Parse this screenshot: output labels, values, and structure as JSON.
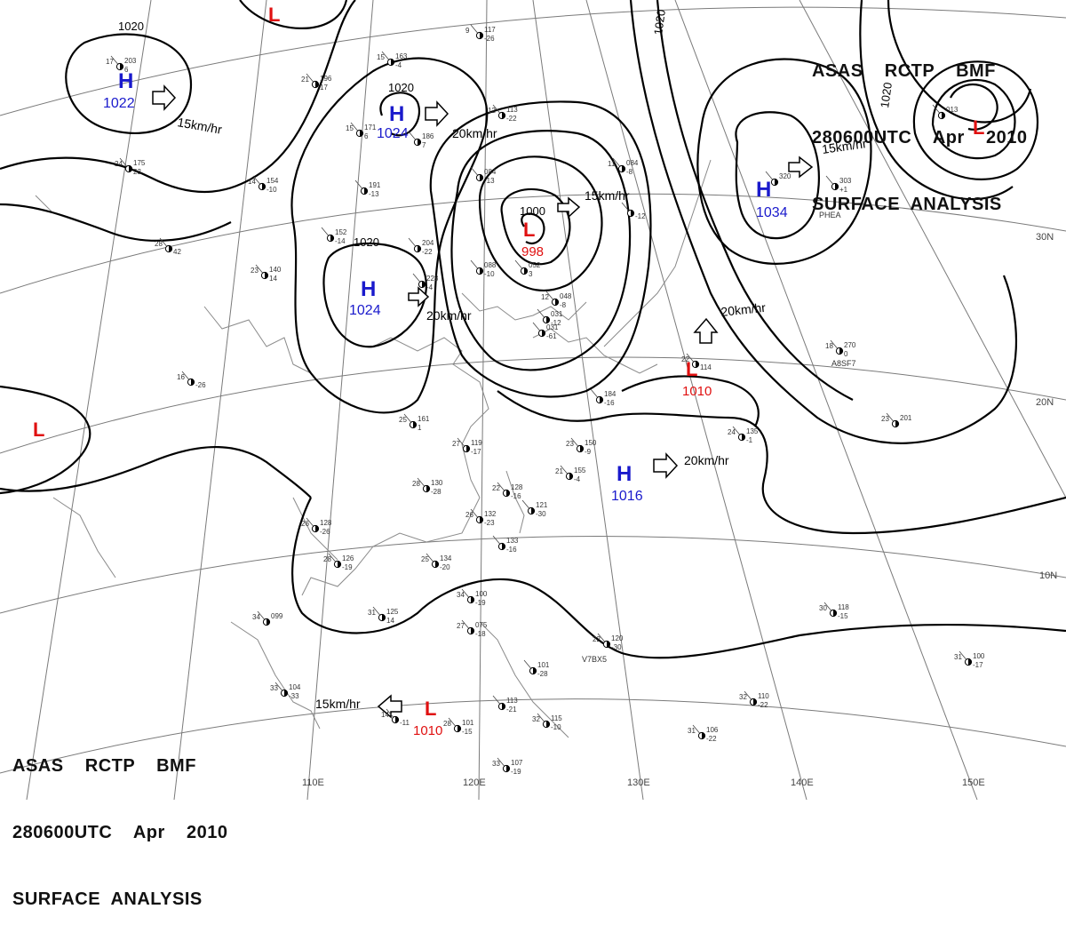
{
  "header": {
    "line1": "ASAS    RCTP    BMF",
    "line2": "280600UTC    Apr    2010",
    "line3": "SURFACE  ANALYSIS"
  },
  "footer": {
    "line1": "ASAS    RCTP    BMF",
    "line2": "280600UTC    Apr    2010",
    "line3": "SURFACE  ANALYSIS"
  },
  "colors": {
    "high": "#1a1acc",
    "low": "#e01010",
    "isobar": "#000000",
    "grid": "#777777",
    "coast": "#888888"
  },
  "lon_labels": [
    "110E",
    "120E",
    "130E",
    "140E",
    "150E"
  ],
  "lat_labels": [
    "30N",
    "20N",
    "10N"
  ],
  "isobar_labels": [
    "1020",
    "1020",
    "1020",
    "1000",
    "1020",
    "1020"
  ],
  "pressure_centers": [
    {
      "kind": "H",
      "value": "1022"
    },
    {
      "kind": "H",
      "value": "1024"
    },
    {
      "kind": "H",
      "value": "1024"
    },
    {
      "kind": "L",
      "value": "998"
    },
    {
      "kind": "H",
      "value": "1034"
    },
    {
      "kind": "L",
      "value": ""
    },
    {
      "kind": "L",
      "value": ""
    },
    {
      "kind": "L",
      "value": "1010"
    },
    {
      "kind": "H",
      "value": "1016"
    },
    {
      "kind": "L",
      "value": "1010"
    },
    {
      "kind": "L",
      "value": ""
    }
  ],
  "motion_labels": [
    "15km/hr",
    "20km/hr",
    "15km/hr",
    "15km/hr",
    "20km/hr",
    "20km/hr",
    "20km/hr",
    "15km/hr"
  ],
  "ship_ids": [
    "PHEA",
    "A8SF7",
    "V7BX5"
  ],
  "stations": [
    {
      "t": "17",
      "p": "203",
      "d": "6"
    },
    {
      "t": "21",
      "p": "196",
      "d": "17"
    },
    {
      "t": "15",
      "p": "163",
      "d": "-4"
    },
    {
      "t": "9",
      "p": "117",
      "d": "-26"
    },
    {
      "t": "15",
      "p": "171",
      "d": "6"
    },
    {
      "t": "",
      "p": "186",
      "d": "7"
    },
    {
      "t": "24",
      "p": "175",
      "d": "23"
    },
    {
      "t": "14",
      "p": "154",
      "d": "-10"
    },
    {
      "t": "",
      "p": "191",
      "d": "-13"
    },
    {
      "t": "12",
      "p": "113",
      "d": "-22"
    },
    {
      "t": "",
      "p": "084",
      "d": "-13"
    },
    {
      "t": "28",
      "p": "",
      "d": "42"
    },
    {
      "t": "23",
      "p": "140",
      "d": "14"
    },
    {
      "t": "",
      "p": "152",
      "d": "-14"
    },
    {
      "t": "",
      "p": "204",
      "d": "-22"
    },
    {
      "t": "",
      "p": "228",
      "d": "-4"
    },
    {
      "t": "",
      "p": "088",
      "d": "-10"
    },
    {
      "t": "",
      "p": "052",
      "d": "3"
    },
    {
      "t": "12",
      "p": "048",
      "d": "-8"
    },
    {
      "t": "",
      "p": "031",
      "d": "-61"
    },
    {
      "t": "16",
      "p": "",
      "d": "-26"
    },
    {
      "t": "25",
      "p": "161",
      "d": "1"
    },
    {
      "t": "27",
      "p": "119",
      "d": "-17"
    },
    {
      "t": "23",
      "p": "150",
      "d": "-9"
    },
    {
      "t": "21",
      "p": "155",
      "d": "-4"
    },
    {
      "t": "28",
      "p": "130",
      "d": "-28"
    },
    {
      "t": "22",
      "p": "128",
      "d": "-16"
    },
    {
      "t": "",
      "p": "121",
      "d": "-30"
    },
    {
      "t": "26",
      "p": "132",
      "d": "-23"
    },
    {
      "t": "",
      "p": "133",
      "d": "-16"
    },
    {
      "t": "25",
      "p": "134",
      "d": "-20"
    },
    {
      "t": "26",
      "p": "128",
      "d": "-26"
    },
    {
      "t": "28",
      "p": "126",
      "d": "-19"
    },
    {
      "t": "31",
      "p": "125",
      "d": "14"
    },
    {
      "t": "34",
      "p": "099",
      "d": ""
    },
    {
      "t": "34",
      "p": "100",
      "d": "-19"
    },
    {
      "t": "27",
      "p": "075",
      "d": "-18"
    },
    {
      "t": "33",
      "p": "104",
      "d": "-33"
    },
    {
      "t": "14",
      "p": "",
      "d": "-11"
    },
    {
      "t": "28",
      "p": "101",
      "d": "-15"
    },
    {
      "t": "",
      "p": "113",
      "d": "-21"
    },
    {
      "t": "32",
      "p": "115",
      "d": "-10"
    },
    {
      "t": "33",
      "p": "107",
      "d": "-19"
    },
    {
      "t": "",
      "p": "101",
      "d": "-28"
    },
    {
      "t": "22",
      "p": "120",
      "d": "-30"
    },
    {
      "t": "30",
      "p": "118",
      "d": "-15"
    },
    {
      "t": "31",
      "p": "100",
      "d": "-17"
    },
    {
      "t": "32",
      "p": "110",
      "d": "-22"
    },
    {
      "t": "31",
      "p": "106",
      "d": "-22"
    },
    {
      "t": "24",
      "p": "135",
      "d": "-1"
    },
    {
      "t": "23",
      "p": "201",
      "d": ""
    },
    {
      "t": "18",
      "p": "270",
      "d": "0"
    },
    {
      "t": "",
      "p": "320",
      "d": ""
    },
    {
      "t": "",
      "p": "303",
      "d": "+1"
    },
    {
      "t": "22",
      "p": "",
      "d": "114"
    },
    {
      "t": "",
      "p": "184",
      "d": "-16"
    },
    {
      "t": "",
      "p": "031",
      "d": "-12"
    },
    {
      "t": "",
      "p": "013",
      "d": ""
    },
    {
      "t": "11",
      "p": "084",
      "d": "-8"
    },
    {
      "t": "",
      "p": "",
      "d": "-12"
    }
  ]
}
